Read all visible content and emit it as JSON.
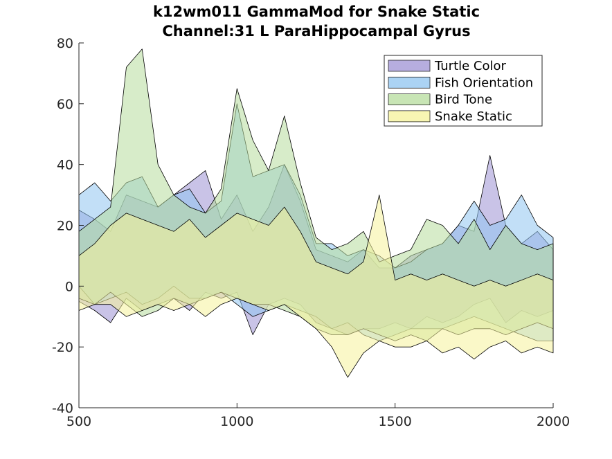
{
  "chart_data": {
    "type": "area",
    "title": "k12wm011 GammaMod for Snake Static",
    "subtitle": "Channel:31 L ParaHippocampal Gyrus",
    "xlabel": "",
    "ylabel": "",
    "xlim": [
      500,
      2000
    ],
    "ylim": [
      -40,
      80
    ],
    "xticks": [
      500,
      1000,
      1500,
      2000
    ],
    "yticks": [
      -40,
      -20,
      0,
      20,
      40,
      60,
      80
    ],
    "legend_position": "top-right",
    "grid": false,
    "series": [
      {
        "name": "Turtle Color",
        "color": "#9d92d4",
        "x": [
          500,
          550,
          600,
          650,
          700,
          750,
          800,
          850,
          900,
          950,
          1000,
          1050,
          1100,
          1150,
          1200,
          1250,
          1300,
          1350,
          1400,
          1450,
          1500,
          1550,
          1600,
          1650,
          1700,
          1750,
          1800,
          1850,
          1900,
          1950,
          2000
        ],
        "upper": [
          25,
          22,
          18,
          30,
          28,
          26,
          30,
          34,
          38,
          22,
          30,
          18,
          26,
          40,
          28,
          12,
          10,
          8,
          12,
          6,
          6,
          10,
          12,
          14,
          20,
          18,
          43,
          20,
          14,
          18,
          12
        ],
        "lower": [
          -5,
          -8,
          -12,
          -4,
          -8,
          -6,
          -4,
          -8,
          -2,
          -4,
          -2,
          -16,
          -6,
          -4,
          -6,
          -12,
          -14,
          -16,
          -14,
          -14,
          -12,
          -14,
          -10,
          -12,
          -10,
          -6,
          -4,
          -12,
          -8,
          -10,
          -8
        ]
      },
      {
        "name": "Fish Orientation",
        "color": "#8fc4f0",
        "x": [
          500,
          550,
          600,
          650,
          700,
          750,
          800,
          850,
          900,
          950,
          1000,
          1050,
          1100,
          1150,
          1200,
          1250,
          1300,
          1350,
          1400,
          1450,
          1500,
          1550,
          1600,
          1650,
          1700,
          1750,
          1800,
          1850,
          1900,
          1950,
          2000
        ],
        "upper": [
          30,
          34,
          28,
          34,
          36,
          26,
          30,
          32,
          24,
          28,
          60,
          36,
          38,
          40,
          30,
          14,
          14,
          10,
          12,
          10,
          6,
          8,
          12,
          14,
          20,
          28,
          20,
          22,
          30,
          20,
          16
        ],
        "lower": [
          0,
          -6,
          -4,
          -2,
          -6,
          -4,
          0,
          -4,
          -4,
          -2,
          -6,
          -10,
          -8,
          -6,
          -8,
          -10,
          -14,
          -12,
          -16,
          -18,
          -16,
          -14,
          -14,
          -14,
          -12,
          -10,
          -12,
          -14,
          -16,
          -18,
          -18
        ]
      },
      {
        "name": "Bird Tone",
        "color": "#b6dc9c",
        "x": [
          500,
          550,
          600,
          650,
          700,
          750,
          800,
          850,
          900,
          950,
          1000,
          1050,
          1100,
          1150,
          1200,
          1250,
          1300,
          1350,
          1400,
          1450,
          1500,
          1550,
          1600,
          1650,
          1700,
          1750,
          1800,
          1850,
          1900,
          1950,
          2000
        ],
        "upper": [
          18,
          22,
          26,
          72,
          78,
          40,
          30,
          26,
          24,
          32,
          65,
          48,
          38,
          56,
          34,
          16,
          12,
          14,
          18,
          8,
          10,
          12,
          22,
          20,
          14,
          22,
          12,
          20,
          14,
          12,
          14
        ],
        "lower": [
          -4,
          -6,
          -2,
          -6,
          -10,
          -8,
          -4,
          -6,
          -4,
          -2,
          -4,
          -6,
          -6,
          -8,
          -10,
          -14,
          -16,
          -16,
          -14,
          -16,
          -18,
          -16,
          -18,
          -14,
          -16,
          -14,
          -14,
          -16,
          -14,
          -12,
          -14
        ]
      },
      {
        "name": "Snake Static",
        "color": "#f6f39a",
        "x": [
          500,
          550,
          600,
          650,
          700,
          750,
          800,
          850,
          900,
          950,
          1000,
          1050,
          1100,
          1150,
          1200,
          1250,
          1300,
          1350,
          1400,
          1450,
          1500,
          1550,
          1600,
          1650,
          1700,
          1750,
          1800,
          1850,
          1900,
          1950,
          2000
        ],
        "upper": [
          10,
          14,
          20,
          24,
          22,
          20,
          18,
          22,
          16,
          20,
          24,
          22,
          20,
          26,
          18,
          8,
          6,
          4,
          8,
          30,
          2,
          4,
          2,
          4,
          2,
          0,
          2,
          0,
          2,
          4,
          2
        ],
        "lower": [
          -8,
          -6,
          -6,
          -10,
          -8,
          -6,
          -8,
          -6,
          -10,
          -6,
          -4,
          -6,
          -8,
          -6,
          -10,
          -14,
          -20,
          -30,
          -22,
          -18,
          -20,
          -20,
          -18,
          -22,
          -20,
          -24,
          -20,
          -18,
          -22,
          -20,
          -22
        ]
      }
    ]
  }
}
